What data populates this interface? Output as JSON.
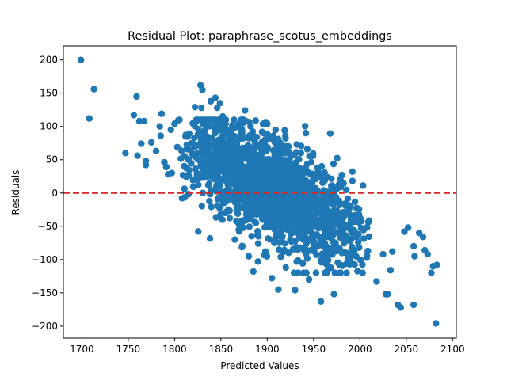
{
  "chart_data": {
    "type": "scatter",
    "title": "Residual Plot: paraphrase_scotus_embeddings",
    "xlabel": "Predicted Values",
    "ylabel": "Residuals",
    "xlim": [
      1680,
      2104
    ],
    "ylim": [
      -218,
      221
    ],
    "xticks": [
      1700,
      1750,
      1800,
      1850,
      1900,
      1950,
      2000,
      2050,
      2100
    ],
    "yticks": [
      -200,
      -150,
      -100,
      -50,
      0,
      50,
      100,
      150,
      200
    ],
    "grid": false,
    "reference_line": {
      "y": 0,
      "style": "dashed"
    },
    "colors": {
      "points": "#1f77b4",
      "reference_line": "#d62728"
    },
    "cloud_trend": {
      "slope": -0.7,
      "intercept_at_1900": 10,
      "spread_sd": 38,
      "x_range": [
        1800,
        2015
      ],
      "count": 1700
    },
    "points": [
      [
        1699,
        200
      ],
      [
        1708,
        112
      ],
      [
        1713,
        156
      ],
      [
        1747,
        60
      ],
      [
        1756,
        117
      ],
      [
        1759,
        145
      ],
      [
        1760,
        56
      ],
      [
        1762,
        108
      ],
      [
        1764,
        74
      ],
      [
        1767,
        108
      ],
      [
        1769,
        48
      ],
      [
        1769,
        42
      ],
      [
        1775,
        76
      ],
      [
        1780,
        63
      ],
      [
        1784,
        100
      ],
      [
        1785,
        86
      ],
      [
        1786,
        119
      ],
      [
        1789,
        46
      ],
      [
        1791,
        39
      ],
      [
        1793,
        28
      ],
      [
        1796,
        95
      ],
      [
        1797,
        30
      ],
      [
        1800,
        104
      ],
      [
        1803,
        69
      ],
      [
        1808,
        -8
      ],
      [
        1812,
        87
      ],
      [
        1815,
        50
      ],
      [
        1820,
        19
      ],
      [
        1822,
        129
      ],
      [
        1826,
        72
      ],
      [
        1828,
        162
      ],
      [
        1829,
        128
      ],
      [
        1830,
        155
      ],
      [
        1836,
        102
      ],
      [
        1839,
        138
      ],
      [
        1844,
        143
      ],
      [
        1846,
        128
      ],
      [
        1849,
        135
      ],
      [
        1852,
        115
      ],
      [
        1858,
        -25
      ],
      [
        1860,
        95
      ],
      [
        1865,
        -70
      ],
      [
        1870,
        84
      ],
      [
        1873,
        -80
      ],
      [
        1876,
        124
      ],
      [
        1880,
        -95
      ],
      [
        1882,
        100
      ],
      [
        1885,
        -118
      ],
      [
        1890,
        -103
      ],
      [
        1896,
        90
      ],
      [
        1898,
        -88
      ],
      [
        1900,
        104
      ],
      [
        1905,
        -128
      ],
      [
        1908,
        -70
      ],
      [
        1912,
        -145
      ],
      [
        1920,
        -112
      ],
      [
        1925,
        -70
      ],
      [
        1930,
        -146
      ],
      [
        1935,
        -82
      ],
      [
        1945,
        -130
      ],
      [
        1958,
        -163
      ],
      [
        1965,
        -98
      ],
      [
        1972,
        -152
      ],
      [
        1978,
        -108
      ],
      [
        1985,
        -90
      ],
      [
        1990,
        -104
      ],
      [
        1998,
        -62
      ],
      [
        2010,
        -42
      ],
      [
        2018,
        -133
      ],
      [
        2025,
        -92
      ],
      [
        2028,
        -152
      ],
      [
        2030,
        -152
      ],
      [
        2033,
        -116
      ],
      [
        2035,
        -88
      ],
      [
        2041,
        -168
      ],
      [
        2044,
        -172
      ],
      [
        2048,
        -58
      ],
      [
        2052,
        -52
      ],
      [
        2058,
        -168
      ],
      [
        2058,
        -80
      ],
      [
        2059,
        -95
      ],
      [
        2064,
        -60
      ],
      [
        2068,
        -66
      ],
      [
        2070,
        -86
      ],
      [
        2073,
        -92
      ],
      [
        2077,
        -120
      ],
      [
        2079,
        -110
      ],
      [
        2082,
        -196
      ],
      [
        2083,
        -108
      ]
    ]
  }
}
